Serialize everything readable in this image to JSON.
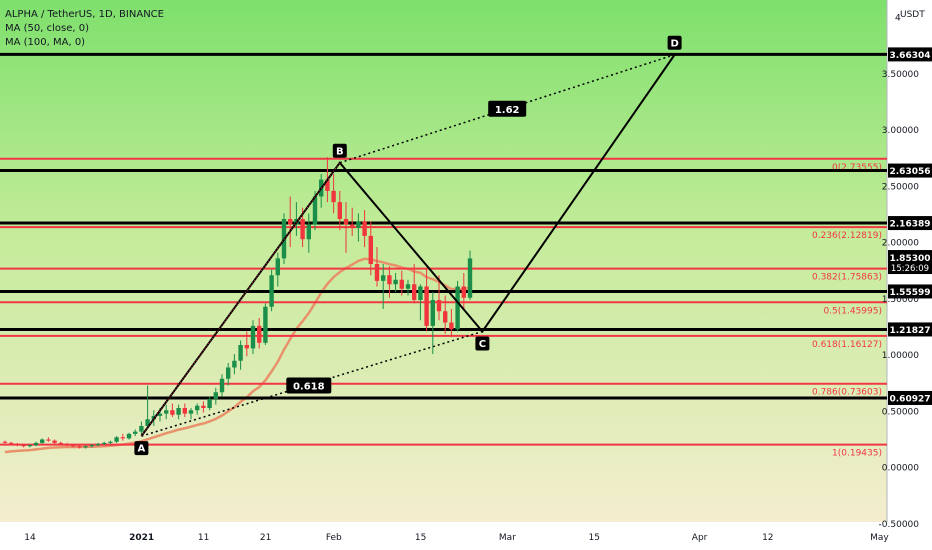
{
  "chart_data": {
    "type": "candlestick",
    "symbol_line": "ALPHA / TetherUS, 1D, BINANCE",
    "indicators": [
      "MA (50, close, 0)",
      "MA (100, MA, 0)"
    ],
    "currency": "USDT",
    "y_ticks": [
      {
        "label": "4",
        "value": 4.0
      },
      {
        "label": "3.50000",
        "value": 3.5
      },
      {
        "label": "3.00000",
        "value": 3.0
      },
      {
        "label": "2.50000",
        "value": 2.5
      },
      {
        "label": "2.00000",
        "value": 2.0
      },
      {
        "label": "1.50000",
        "value": 1.5
      },
      {
        "label": "1.00000",
        "value": 1.0
      },
      {
        "label": "0.50000",
        "value": 0.5
      },
      {
        "label": "0.00000",
        "value": 0.0
      },
      {
        "label": "-0.50000",
        "value": -0.5
      }
    ],
    "x_ticks": [
      {
        "label": "14",
        "day": 0
      },
      {
        "label": "2021",
        "day": 18
      },
      {
        "label": "11",
        "day": 28
      },
      {
        "label": "21",
        "day": 38
      },
      {
        "label": "Feb",
        "day": 49
      },
      {
        "label": "15",
        "day": 63
      },
      {
        "label": "Mar",
        "day": 77
      },
      {
        "label": "15",
        "day": 91
      },
      {
        "label": "Apr",
        "day": 108
      },
      {
        "label": "12",
        "day": 119
      },
      {
        "label": "May",
        "day": 137
      }
    ],
    "horizontal_levels": [
      {
        "value": 3.66304,
        "label": "3.66304"
      },
      {
        "value": 2.63056,
        "label": "2.63056"
      },
      {
        "value": 2.16389,
        "label": "2.16389"
      },
      {
        "value": 1.55599,
        "label": "1.55599"
      },
      {
        "value": 1.21827,
        "label": "1.21827"
      },
      {
        "value": 0.60927,
        "label": "0.60927"
      }
    ],
    "fib_levels": [
      {
        "value": 2.73555,
        "label": "0(2.73555)"
      },
      {
        "value": 2.12819,
        "label": "0.236(2.12819)"
      },
      {
        "value": 1.75863,
        "label": "0.382(1.75863)"
      },
      {
        "value": 1.45995,
        "label": "0.5(1.45995)"
      },
      {
        "value": 1.16127,
        "label": "0.618(1.16127)"
      },
      {
        "value": 0.73603,
        "label": "0.786(0.73603)"
      },
      {
        "value": 0.19435,
        "label": "1(0.19435)"
      }
    ],
    "current_price": {
      "value": 1.853,
      "label": "1.85300",
      "countdown": "15:26:09"
    },
    "pattern_points": [
      {
        "name": "A",
        "day": 22,
        "value": 0.27
      },
      {
        "name": "B",
        "day": 54,
        "value": 2.7
      },
      {
        "name": "C",
        "day": 77,
        "value": 1.2
      },
      {
        "name": "D",
        "day": 108,
        "value": 3.66
      }
    ],
    "ratio_labels": [
      {
        "label": "1.62",
        "day": 81,
        "value": 3.18
      },
      {
        "label": "0.618",
        "day": 49,
        "value": 0.72
      }
    ],
    "candles": [
      [
        0.22,
        0.23,
        0.2,
        0.21
      ],
      [
        0.21,
        0.22,
        0.19,
        0.2
      ],
      [
        0.2,
        0.21,
        0.18,
        0.19
      ],
      [
        0.19,
        0.2,
        0.17,
        0.18
      ],
      [
        0.18,
        0.2,
        0.17,
        0.19
      ],
      [
        0.19,
        0.22,
        0.18,
        0.21
      ],
      [
        0.21,
        0.25,
        0.2,
        0.24
      ],
      [
        0.24,
        0.26,
        0.22,
        0.23
      ],
      [
        0.23,
        0.24,
        0.2,
        0.21
      ],
      [
        0.21,
        0.22,
        0.19,
        0.2
      ],
      [
        0.2,
        0.21,
        0.18,
        0.19
      ],
      [
        0.19,
        0.2,
        0.17,
        0.18
      ],
      [
        0.18,
        0.19,
        0.16,
        0.17
      ],
      [
        0.17,
        0.19,
        0.16,
        0.18
      ],
      [
        0.18,
        0.2,
        0.17,
        0.19
      ],
      [
        0.19,
        0.21,
        0.18,
        0.2
      ],
      [
        0.2,
        0.22,
        0.19,
        0.21
      ],
      [
        0.21,
        0.23,
        0.2,
        0.22
      ],
      [
        0.22,
        0.27,
        0.21,
        0.26
      ],
      [
        0.26,
        0.29,
        0.23,
        0.25
      ],
      [
        0.25,
        0.3,
        0.24,
        0.29
      ],
      [
        0.29,
        0.33,
        0.27,
        0.31
      ],
      [
        0.31,
        0.4,
        0.28,
        0.36
      ],
      [
        0.36,
        0.72,
        0.35,
        0.42
      ],
      [
        0.42,
        0.5,
        0.36,
        0.45
      ],
      [
        0.45,
        0.52,
        0.4,
        0.47
      ],
      [
        0.47,
        0.55,
        0.42,
        0.5
      ],
      [
        0.5,
        0.56,
        0.44,
        0.46
      ],
      [
        0.46,
        0.55,
        0.42,
        0.52
      ],
      [
        0.52,
        0.56,
        0.44,
        0.47
      ],
      [
        0.47,
        0.52,
        0.42,
        0.5
      ],
      [
        0.5,
        0.56,
        0.46,
        0.54
      ],
      [
        0.54,
        0.58,
        0.48,
        0.52
      ],
      [
        0.52,
        0.62,
        0.5,
        0.6
      ],
      [
        0.6,
        0.7,
        0.55,
        0.66
      ],
      [
        0.66,
        0.82,
        0.62,
        0.78
      ],
      [
        0.78,
        0.92,
        0.72,
        0.88
      ],
      [
        0.88,
        1.0,
        0.82,
        0.94
      ],
      [
        0.94,
        1.12,
        0.86,
        1.08
      ],
      [
        1.08,
        1.2,
        0.98,
        1.05
      ],
      [
        1.05,
        1.3,
        1.0,
        1.25
      ],
      [
        1.25,
        1.32,
        1.05,
        1.1
      ],
      [
        1.1,
        1.45,
        1.08,
        1.42
      ],
      [
        1.42,
        1.75,
        1.38,
        1.7
      ],
      [
        1.7,
        1.9,
        1.6,
        1.85
      ],
      [
        1.85,
        2.25,
        1.8,
        2.2
      ],
      [
        2.2,
        2.4,
        1.95,
        2.15
      ],
      [
        2.15,
        2.35,
        2.05,
        2.2
      ],
      [
        2.2,
        2.3,
        1.95,
        2.02
      ],
      [
        2.02,
        2.25,
        1.9,
        2.15
      ],
      [
        2.15,
        2.45,
        2.1,
        2.4
      ],
      [
        2.4,
        2.6,
        2.3,
        2.55
      ],
      [
        2.55,
        2.75,
        2.35,
        2.45
      ],
      [
        2.45,
        2.6,
        2.25,
        2.35
      ],
      [
        2.35,
        2.45,
        2.1,
        2.2
      ],
      [
        2.2,
        2.35,
        1.9,
        2.15
      ],
      [
        2.15,
        2.3,
        2.05,
        2.12
      ],
      [
        2.12,
        2.25,
        2.0,
        2.18
      ],
      [
        2.18,
        2.28,
        1.95,
        2.05
      ],
      [
        2.05,
        2.18,
        1.7,
        1.8
      ],
      [
        1.8,
        1.95,
        1.6,
        1.65
      ],
      [
        1.65,
        1.8,
        1.4,
        1.7
      ],
      [
        1.7,
        1.78,
        1.5,
        1.62
      ],
      [
        1.62,
        1.72,
        1.55,
        1.66
      ],
      [
        1.66,
        1.74,
        1.52,
        1.58
      ],
      [
        1.58,
        1.66,
        1.52,
        1.62
      ],
      [
        1.62,
        1.8,
        1.45,
        1.48
      ],
      [
        1.48,
        1.62,
        1.3,
        1.6
      ],
      [
        1.6,
        1.75,
        1.2,
        1.25
      ],
      [
        1.25,
        1.55,
        1.0,
        1.48
      ],
      [
        1.48,
        1.7,
        1.3,
        1.38
      ],
      [
        1.38,
        1.52,
        1.18,
        1.28
      ],
      [
        1.28,
        1.4,
        1.15,
        1.22
      ],
      [
        1.22,
        1.65,
        1.2,
        1.6
      ],
      [
        1.6,
        1.72,
        1.4,
        1.5
      ],
      [
        1.5,
        1.92,
        1.48,
        1.85
      ]
    ]
  }
}
